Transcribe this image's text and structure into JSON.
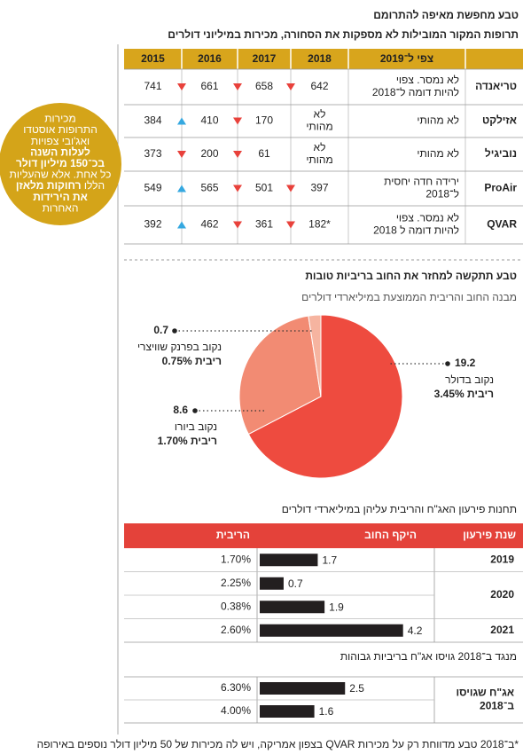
{
  "header": {
    "title": "טבע מחפשת מאיפה להתרומם",
    "subtitle": "תרופות המקור המובילות לא מספקות את הסחורה, מכירות במיליוני דולרים"
  },
  "table": {
    "columns": [
      "צפי ל־2019",
      "2018",
      "2017",
      "2016",
      "2015"
    ],
    "rows": [
      {
        "name": "טריאנדה",
        "cells": [
          [
            "לא נמסר. צפוי",
            "להיות דומה ל־2018"
          ],
          642,
          658,
          661,
          741
        ]
      },
      {
        "name": "אזילקט",
        "cells": [
          "לא מהותי",
          [
            "לא",
            "מהותי"
          ],
          170,
          410,
          384
        ]
      },
      {
        "name": "נוביגיל",
        "cells": [
          "לא מהותי",
          [
            "לא",
            "מהותי"
          ],
          61,
          200,
          373
        ]
      },
      {
        "name": "ProAir",
        "cells": [
          [
            "ירידה חדה יחסית",
            "ל־2018"
          ],
          397,
          501,
          565,
          549
        ]
      },
      {
        "name": "QVAR",
        "cells": [
          [
            "לא נמסר. צפוי",
            "להיות דומה ל 2018"
          ],
          "182*",
          361,
          462,
          392
        ]
      }
    ]
  },
  "callout": [
    [
      {
        "text": "מכירות",
        "bold": false
      }
    ],
    [
      {
        "text": "התרופות אוסטדו",
        "bold": false
      }
    ],
    [
      {
        "text": "ואג'ובי צפויות",
        "bold": false
      }
    ],
    [
      {
        "text": "לעלות השנה",
        "bold": true
      }
    ],
    [
      {
        "text": "בכ־150 מיליון דולר",
        "bold": true
      }
    ],
    [
      {
        "text": "כל אחת. אלא שהעליות",
        "bold": false
      }
    ],
    [
      {
        "text": "הללו",
        "bold": false
      },
      {
        "text": "רחוקות מלאזן",
        "bold": true
      }
    ],
    [
      {
        "text": "את הירידות",
        "bold": true
      }
    ],
    [
      {
        "text": "האחרות",
        "bold": false
      }
    ]
  ],
  "chart_data": [
    {
      "type": "pie",
      "title": "טבע תתקשה למחזר את החוב בריביות טובות",
      "subtitle": "מבנה החוב והריבית הממוצעת במיליארדי דולרים",
      "categories": [
        "נקוב בדולר",
        "נקוב ביורו",
        "נקוב בפרנק שוויצרי"
      ],
      "values": [
        19.2,
        8.6,
        0.7
      ],
      "colors": [
        "#ee4b3f",
        "#f28b73",
        "#f6b4a0"
      ],
      "rate_label": "ריבית",
      "rates": [
        "3.45%",
        "1.70%",
        "0.75%"
      ]
    },
    {
      "type": "bar",
      "title": "תחנות פירעון האג\"ח והריבית עליהן במיליארדי דולרים",
      "columns": [
        "שנת פירעון",
        "היקף החוב",
        "הריבית"
      ],
      "categories": [
        "2019",
        "2020",
        null,
        "2021"
      ],
      "values": [
        1.7,
        0.7,
        1.9,
        4.2
      ],
      "rates": [
        "1.70%",
        "2.25%",
        "0.38%",
        "2.60%"
      ],
      "color": "#231f20"
    },
    {
      "type": "bar",
      "title": "מנגד ב־2018 גויסו אג\"ח בריביות גבוהות",
      "categories": [
        [
          "אג\"ח שגויסו",
          "ב־2018"
        ],
        null
      ],
      "values": [
        2.5,
        1.6
      ],
      "rates": [
        "6.30%",
        "4.00%"
      ],
      "color": "#231f20"
    }
  ],
  "footnote": "*ב־2018 טבע מדווחת רק על מכירות QVAR בצפון אמריקה, ויש לה מכירות של 50 מיליון דולר נוספים באירופה"
}
